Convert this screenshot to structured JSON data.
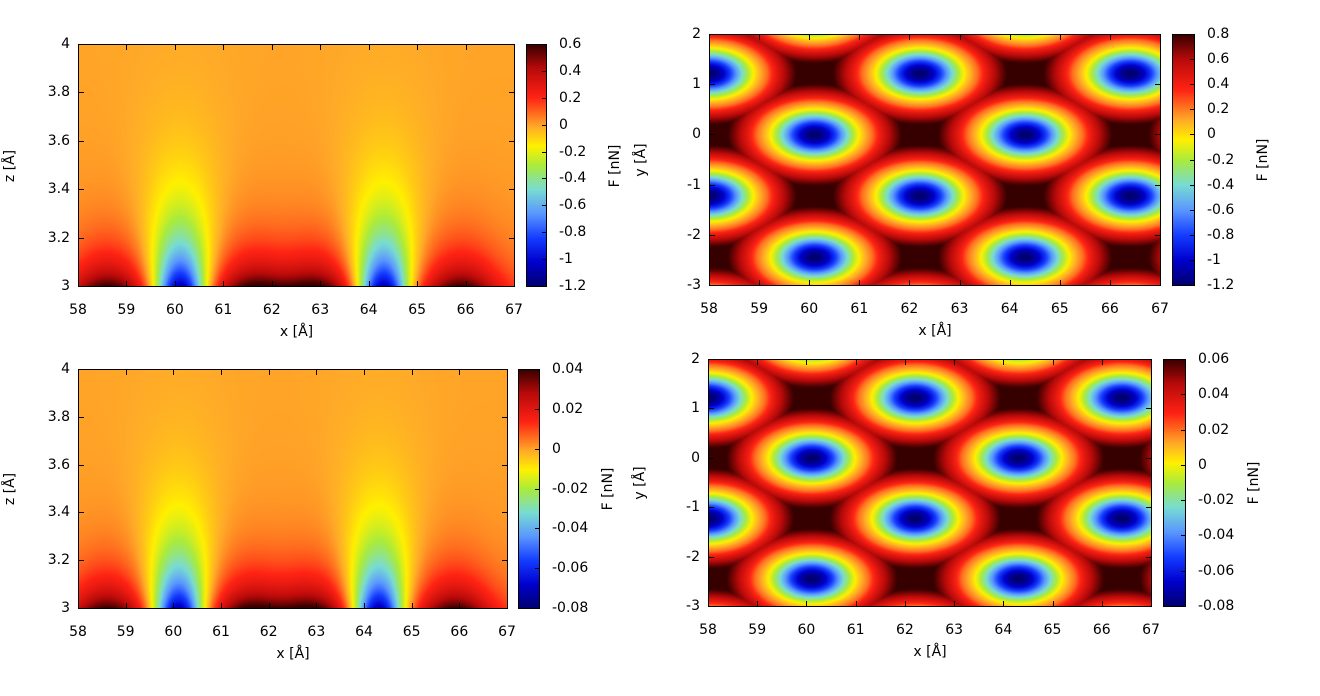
{
  "chart_data": [
    {
      "type": "heatmap",
      "title": "",
      "xlabel": "x [Å]",
      "ylabel": "z [Å]",
      "colorbar_label": "F [nN]",
      "xlim": [
        58,
        67
      ],
      "ylim": [
        3,
        4
      ],
      "zlim": [
        -1.2,
        0.6
      ],
      "x_ticks": [
        "58",
        "59",
        "60",
        "61",
        "62",
        "63",
        "64",
        "65",
        "66",
        "67"
      ],
      "y_ticks": [
        "3",
        "3.2",
        "3.4",
        "3.6",
        "3.8",
        "4"
      ],
      "colorbar_ticks": [
        "-1.2",
        "-1",
        "-0.8",
        "-0.6",
        "-0.4",
        "-0.2",
        "0",
        "0.2",
        "0.4",
        "0.6"
      ],
      "colormap": "jet-dark"
    },
    {
      "type": "heatmap",
      "title": "",
      "xlabel": "x [Å]",
      "ylabel": "y [Å]",
      "colorbar_label": "F [nN]",
      "xlim": [
        58,
        67
      ],
      "ylim": [
        -3,
        2
      ],
      "zlim": [
        -1.2,
        0.8
      ],
      "x_ticks": [
        "58",
        "59",
        "60",
        "61",
        "62",
        "63",
        "64",
        "65",
        "66",
        "67"
      ],
      "y_ticks": [
        "-3",
        "-2",
        "-1",
        "0",
        "1",
        "2"
      ],
      "colorbar_ticks": [
        "-1.2",
        "-1",
        "-0.8",
        "-0.6",
        "-0.4",
        "-0.2",
        "0",
        "0.2",
        "0.4",
        "0.6",
        "0.8"
      ],
      "colormap": "jet-dark"
    },
    {
      "type": "heatmap",
      "title": "",
      "xlabel": "x [Å]",
      "ylabel": "z [Å]",
      "colorbar_label": "F [nN]",
      "xlim": [
        58,
        67
      ],
      "ylim": [
        3,
        4
      ],
      "zlim": [
        -0.08,
        0.04
      ],
      "x_ticks": [
        "58",
        "59",
        "60",
        "61",
        "62",
        "63",
        "64",
        "65",
        "66",
        "67"
      ],
      "y_ticks": [
        "3",
        "3.2",
        "3.4",
        "3.6",
        "3.8",
        "4"
      ],
      "colorbar_ticks": [
        "-0.08",
        "-0.06",
        "-0.04",
        "-0.02",
        "0",
        "0.02",
        "0.04"
      ],
      "colormap": "jet-dark"
    },
    {
      "type": "heatmap",
      "title": "",
      "xlabel": "x [Å]",
      "ylabel": "y [Å]",
      "colorbar_label": "F [nN]",
      "xlim": [
        58,
        67
      ],
      "ylim": [
        -3,
        2
      ],
      "zlim": [
        -0.08,
        0.06
      ],
      "x_ticks": [
        "58",
        "59",
        "60",
        "61",
        "62",
        "63",
        "64",
        "65",
        "66",
        "67"
      ],
      "y_ticks": [
        "-3",
        "-2",
        "-1",
        "0",
        "1",
        "2"
      ],
      "colorbar_ticks": [
        "-0.08",
        "-0.06",
        "-0.04",
        "-0.02",
        "0",
        "0.02",
        "0.04",
        "0.06"
      ],
      "colormap": "jet-dark"
    }
  ]
}
